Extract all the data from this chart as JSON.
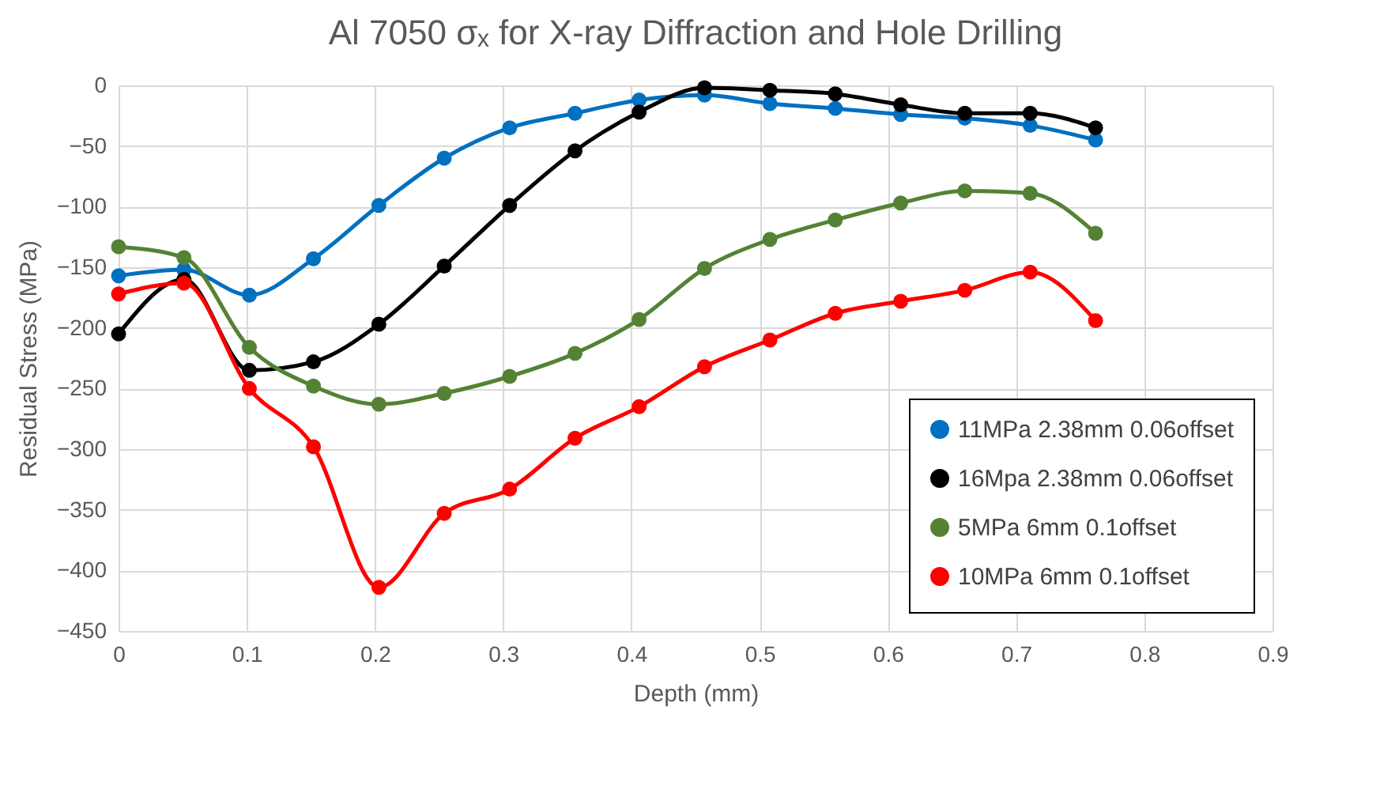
{
  "chart_data": {
    "type": "line",
    "title": "Al 7050 σₓ for X-ray Diffraction and Hole Drilling",
    "xlabel": "Depth (mm)",
    "ylabel": "Residual Stress (MPa)",
    "x": [
      0,
      0.051,
      0.102,
      0.152,
      0.203,
      0.254,
      0.305,
      0.356,
      0.406,
      0.457,
      0.508,
      0.559,
      0.61,
      0.66,
      0.711,
      0.762
    ],
    "series": [
      {
        "name": "11MPa 2.38mm 0.06offset",
        "color": "#0070c0",
        "values": [
          -157,
          -152,
          -173,
          -143,
          -99,
          -60,
          -35,
          -23,
          -12,
          -8,
          -15,
          -19,
          -24,
          -27,
          -33,
          -45
        ]
      },
      {
        "name": "16Mpa 2.38mm 0.06offset",
        "color": "#000000",
        "values": [
          -205,
          -160,
          -235,
          -228,
          -197,
          -149,
          -99,
          -54,
          -22,
          -2,
          -4,
          -7,
          -16,
          -23,
          -23,
          -35
        ]
      },
      {
        "name": "5MPa 6mm 0.1offset",
        "color": "#548235",
        "values": [
          -133,
          -142,
          -216,
          -248,
          -263,
          -254,
          -240,
          -221,
          -193,
          -151,
          -127,
          -111,
          -97,
          -87,
          -89,
          -122
        ]
      },
      {
        "name": "10MPa 6mm 0.1offset",
        "color": "#ff0000",
        "values": [
          -172,
          -163,
          -250,
          -298,
          -414,
          -353,
          -333,
          -291,
          -265,
          -232,
          -210,
          -188,
          -178,
          -169,
          -154,
          -194
        ]
      }
    ],
    "xlim": [
      0,
      0.9
    ],
    "xticks": [
      0,
      0.1,
      0.2,
      0.3,
      0.4,
      0.5,
      0.6,
      0.7,
      0.8,
      0.9
    ],
    "ylim": [
      -450,
      0
    ],
    "yticks": [
      -450,
      -400,
      -350,
      -300,
      -250,
      -200,
      -150,
      -100,
      -50,
      0
    ],
    "grid": true,
    "legend": "bottom right",
    "marker": "circle",
    "line_style": "solid"
  }
}
